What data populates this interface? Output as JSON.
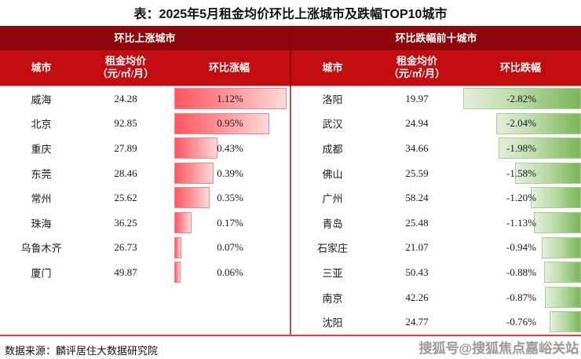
{
  "title": "表：2025年5月租金均价环比上涨城市及跌幅TOP10城市",
  "footer": {
    "source": "数据来源：麟评居住大数据研究院",
    "watermark": "搜狐号@搜狐焦点嘉峪关站"
  },
  "colors": {
    "section_header_bg": "#8f070b",
    "column_header_bg": "#c40d10",
    "header_text": "#ffffff",
    "up_bar_gradient_start": "#fc575e",
    "up_bar_gradient_end": "#fdd9da",
    "up_bar_border": "#f2878b",
    "down_bar_gradient_start": "#e4efdb",
    "down_bar_gradient_end": "#78b657",
    "down_bar_border": "#a9cf97",
    "divider_body": "#cc4a4d",
    "table_bottom_border": "#e23c3e",
    "body_text": "#1a1a1a",
    "watermark_text": "#9c9c9c"
  },
  "chart_data": [
    {
      "type": "table",
      "section_title": "环比上涨城市",
      "columns": [
        "城市",
        "租金均价\n（元/㎡/月）",
        "环比涨幅"
      ],
      "bar": {
        "direction": "ltr",
        "axis_max": 1.12
      },
      "rows": [
        {
          "city": "威海",
          "rent": "24.28",
          "change_pct": 1.12,
          "change_label": "1.12%"
        },
        {
          "city": "北京",
          "rent": "92.85",
          "change_pct": 0.95,
          "change_label": "0.95%"
        },
        {
          "city": "重庆",
          "rent": "27.89",
          "change_pct": 0.43,
          "change_label": "0.43%"
        },
        {
          "city": "东莞",
          "rent": "28.46",
          "change_pct": 0.39,
          "change_label": "0.39%"
        },
        {
          "city": "常州",
          "rent": "25.62",
          "change_pct": 0.35,
          "change_label": "0.35%"
        },
        {
          "city": "珠海",
          "rent": "36.25",
          "change_pct": 0.17,
          "change_label": "0.17%"
        },
        {
          "city": "乌鲁木齐",
          "rent": "26.73",
          "change_pct": 0.07,
          "change_label": "0.07%"
        },
        {
          "city": "厦门",
          "rent": "49.87",
          "change_pct": 0.06,
          "change_label": "0.06%"
        }
      ]
    },
    {
      "type": "table",
      "section_title": "环比跌幅前十城市",
      "columns": [
        "城市",
        "租金均价\n（元/㎡/月）",
        "环比跌幅"
      ],
      "bar": {
        "direction": "rtl",
        "axis_max": 2.82
      },
      "rows": [
        {
          "city": "洛阳",
          "rent": "19.97",
          "change_pct": -2.82,
          "change_label": "-2.82%"
        },
        {
          "city": "武汉",
          "rent": "24.94",
          "change_pct": -2.04,
          "change_label": "-2.04%"
        },
        {
          "city": "成都",
          "rent": "34.66",
          "change_pct": -1.98,
          "change_label": "-1.98%"
        },
        {
          "city": "佛山",
          "rent": "25.59",
          "change_pct": -1.58,
          "change_label": "-1.58%"
        },
        {
          "city": "广州",
          "rent": "58.24",
          "change_pct": -1.2,
          "change_label": "-1.20%"
        },
        {
          "city": "青岛",
          "rent": "25.48",
          "change_pct": -1.13,
          "change_label": "-1.13%"
        },
        {
          "city": "石家庄",
          "rent": "21.07",
          "change_pct": -0.94,
          "change_label": "-0.94%"
        },
        {
          "city": "三亚",
          "rent": "50.43",
          "change_pct": -0.88,
          "change_label": "-0.88%"
        },
        {
          "city": "南京",
          "rent": "42.26",
          "change_pct": -0.87,
          "change_label": "-0.87%"
        },
        {
          "city": "沈阳",
          "rent": "24.77",
          "change_pct": -0.76,
          "change_label": "-0.76%"
        }
      ]
    }
  ]
}
